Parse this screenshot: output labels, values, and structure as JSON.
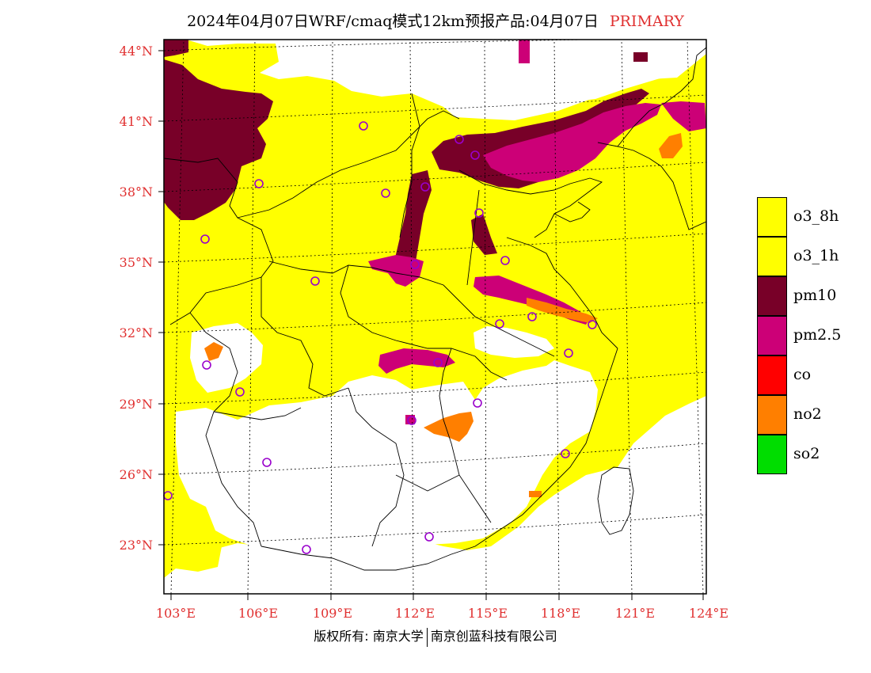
{
  "header": {
    "title": "2024年04月07日WRF/cmaq模式12km预报产品:04月07日",
    "tag": "PRIMARY"
  },
  "map": {
    "lat_labels": [
      "44°N",
      "41°N",
      "38°N",
      "35°N",
      "32°N",
      "29°N",
      "26°N",
      "23°N"
    ],
    "lon_labels": [
      "103°E",
      "106°E",
      "109°E",
      "112°E",
      "115°E",
      "118°E",
      "121°E",
      "124°E"
    ],
    "colors": {
      "o3_8h": "#ffff00",
      "pm10": "#780028",
      "pm2_5": "#cc0077",
      "no2": "#ff7f00",
      "station_marker": "#9900cc",
      "background": "#ffffff"
    },
    "station_marker_icon": "circle-outline-icon"
  },
  "legend": {
    "items": [
      {
        "label": "o3_8h",
        "color": "#ffff00"
      },
      {
        "label": "o3_1h",
        "color": "#ffff00"
      },
      {
        "label": "pm10",
        "color": "#780028"
      },
      {
        "label": "pm2.5",
        "color": "#cc0077"
      },
      {
        "label": "co",
        "color": "#ff0000"
      },
      {
        "label": "no2",
        "color": "#ff7f00"
      },
      {
        "label": "so2",
        "color": "#00dd00"
      }
    ]
  },
  "footer": {
    "left": "版权所有: 南京大学",
    "right": "南京创蓝科技有限公司"
  }
}
